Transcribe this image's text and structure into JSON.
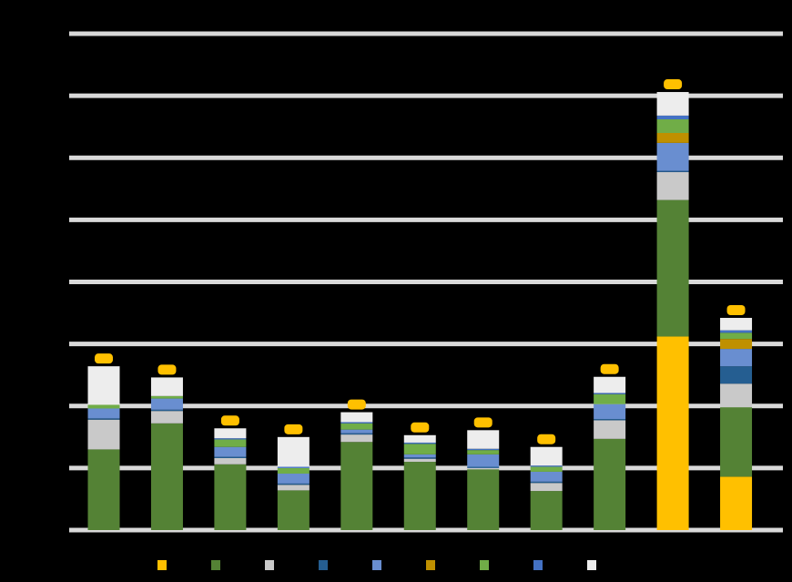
{
  "chart_data": {
    "type": "bar",
    "stacked": true,
    "grid": true,
    "legend_position": "bottom",
    "ylim": [
      0,
      8
    ],
    "gridlines": [
      0,
      1,
      2,
      3,
      4,
      5,
      6,
      7,
      8
    ],
    "categories": [
      "",
      "",
      "",
      "",
      "",
      "",
      "",
      "",
      "",
      "",
      ""
    ],
    "series": [
      {
        "color": "#FFC000",
        "values": [
          0,
          0,
          0,
          0,
          0,
          0,
          0,
          0,
          0,
          3.12,
          0.86
        ]
      },
      {
        "color": "#548235",
        "values": [
          1.3,
          1.72,
          1.06,
          0.64,
          1.42,
          1.1,
          0.98,
          0.63,
          1.47,
          2.2,
          1.12
        ]
      },
      {
        "color": "#C9C9C9",
        "values": [
          0.48,
          0.2,
          0.1,
          0.09,
          0.12,
          0.05,
          0.02,
          0.13,
          0.3,
          0.45,
          0.38
        ]
      },
      {
        "color": "#255E91",
        "values": [
          0.02,
          0.02,
          0.02,
          0.02,
          0.02,
          0.02,
          0.02,
          0.02,
          0.02,
          0.02,
          0.28
        ]
      },
      {
        "color": "#698ED0",
        "values": [
          0.16,
          0.18,
          0.16,
          0.16,
          0.06,
          0.05,
          0.2,
          0.16,
          0.24,
          0.45,
          0.28
        ]
      },
      {
        "color": "#BF9000",
        "values": [
          0,
          0,
          0,
          0,
          0,
          0,
          0,
          0,
          0,
          0.16,
          0.16
        ]
      },
      {
        "color": "#70AD47",
        "values": [
          0.06,
          0.04,
          0.12,
          0.09,
          0.1,
          0.17,
          0.07,
          0.08,
          0.16,
          0.22,
          0.1
        ]
      },
      {
        "color": "#4472C4",
        "values": [
          0,
          0,
          0.02,
          0.02,
          0.02,
          0.02,
          0.02,
          0.02,
          0.02,
          0.06,
          0.04
        ]
      },
      {
        "color": "#EDEDED",
        "values": [
          0.62,
          0.3,
          0.16,
          0.48,
          0.16,
          0.12,
          0.3,
          0.3,
          0.26,
          0.38,
          0.2
        ]
      }
    ],
    "total_labels": [
      "",
      "",
      "",
      "",
      "",
      "",
      "",
      "",
      "",
      "",
      ""
    ],
    "total_label_color": "#FFC000",
    "legend": [
      {
        "label": "",
        "color": "#FFC000"
      },
      {
        "label": "",
        "color": "#548235"
      },
      {
        "label": "",
        "color": "#C9C9C9"
      },
      {
        "label": "",
        "color": "#255E91"
      },
      {
        "label": "",
        "color": "#698ED0"
      },
      {
        "label": "",
        "color": "#BF9000"
      },
      {
        "label": "",
        "color": "#70AD47"
      },
      {
        "label": "",
        "color": "#4472C4"
      },
      {
        "label": "",
        "color": "#EDEDED"
      }
    ]
  }
}
